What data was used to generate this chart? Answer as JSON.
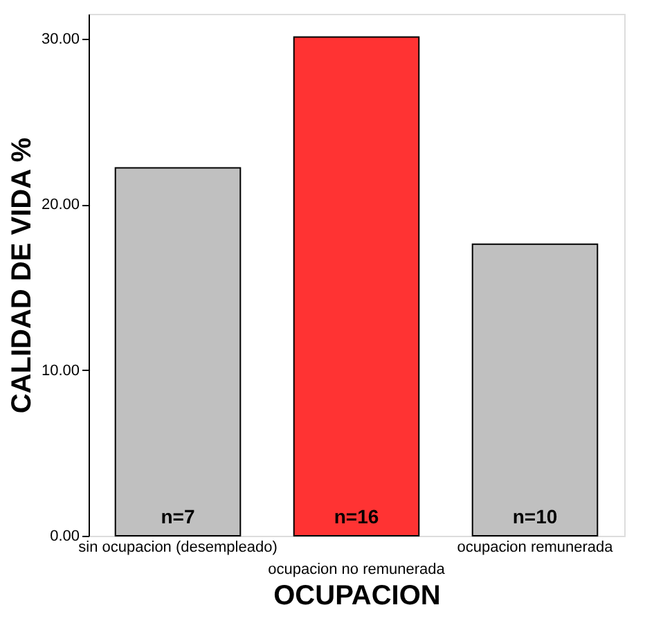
{
  "chart_data": {
    "type": "bar",
    "xlabel": "OCUPACION",
    "ylabel": "CALIDAD DE VIDA  %",
    "categories": [
      "sin ocupacion (desempleado)",
      "ocupacion no remunerada",
      "ocupacion remunerada"
    ],
    "values": [
      22.2,
      30.1,
      17.6
    ],
    "colors": [
      "#c0c0c0",
      "#ff3333",
      "#c0c0c0"
    ],
    "ylim": [
      0,
      31.5
    ],
    "yticks": [
      {
        "value": 0,
        "label": "0.00"
      },
      {
        "value": 10,
        "label": "10.00"
      },
      {
        "value": 20,
        "label": "20.00"
      },
      {
        "value": 30,
        "label": "30.00"
      }
    ],
    "grid": false,
    "legend": false,
    "annotations": [
      "n=7",
      "n=16",
      "n=10"
    ]
  }
}
